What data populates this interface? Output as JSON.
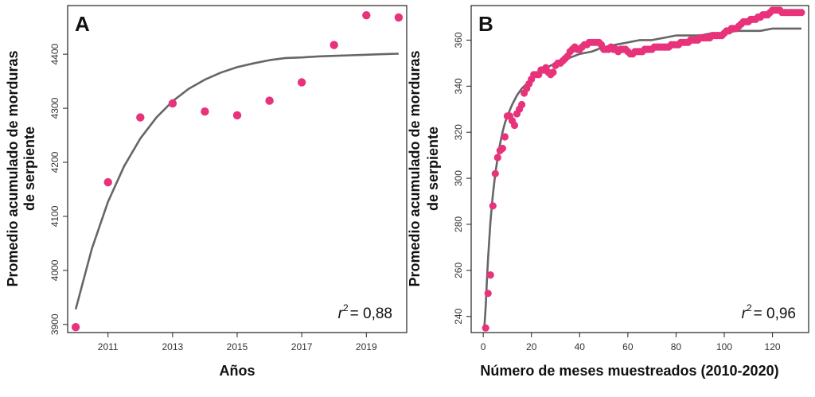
{
  "colors": {
    "points": "#e8337a",
    "fit_line": "#666666",
    "frame": "#222222"
  },
  "chart_data": [
    {
      "type": "scatter",
      "panel": "A",
      "xlabel": "Años",
      "ylabel_line1": "Promedio acumulado de morduras",
      "ylabel_line2": "de serpiente",
      "xlim": [
        2009.75,
        2020.25
      ],
      "ylim": [
        3885,
        4490
      ],
      "xticks": [
        2011,
        2013,
        2015,
        2017,
        2019
      ],
      "yticks": [
        3900,
        4000,
        4100,
        4200,
        4300,
        4400
      ],
      "annotation": {
        "r2_label": "r",
        "r2_exp": "2",
        "r2_value": "= 0,88"
      },
      "series": [
        {
          "kind": "points",
          "x": [
            2010,
            2011,
            2012,
            2013,
            2014,
            2015,
            2016,
            2017,
            2018,
            2019,
            2020
          ],
          "y": [
            3895,
            4163,
            4283,
            4309,
            4294,
            4287,
            4314,
            4348,
            4417,
            4472,
            4468
          ]
        },
        {
          "kind": "fit",
          "x": [
            2010,
            2010.5,
            2011,
            2011.5,
            2012,
            2012.5,
            2013,
            2013.5,
            2014,
            2014.5,
            2015,
            2015.5,
            2016,
            2016.5,
            2017,
            2017.5,
            2018,
            2018.5,
            2019,
            2019.5,
            2020
          ],
          "y": [
            3928,
            4040,
            4127,
            4193,
            4244,
            4283,
            4313,
            4336,
            4353,
            4366,
            4376,
            4383,
            4389,
            4393,
            4394,
            4396,
            4397,
            4398,
            4399,
            4400,
            4401
          ]
        }
      ]
    },
    {
      "type": "scatter",
      "panel": "B",
      "xlabel": "Número de meses muestreados (2010-2020)",
      "ylabel_line1": "Promedio acumulado de morduras",
      "ylabel_line2": "de serpiente",
      "xlim": [
        -5,
        135
      ],
      "ylim": [
        233,
        375
      ],
      "xticks": [
        0,
        20,
        40,
        60,
        80,
        100,
        120
      ],
      "yticks": [
        240,
        260,
        280,
        300,
        320,
        340,
        360
      ],
      "annotation": {
        "r2_label": "r",
        "r2_exp": "2",
        "r2_value": "= 0,96"
      },
      "series": [
        {
          "kind": "points",
          "x": [
            1,
            2,
            3,
            4,
            5,
            6,
            7,
            8,
            9,
            10,
            11,
            12,
            13,
            14,
            15,
            16,
            17,
            18,
            19,
            20,
            21,
            22,
            23,
            24,
            25,
            26,
            27,
            28,
            29,
            30,
            31,
            32,
            33,
            34,
            35,
            36,
            37,
            38,
            39,
            40,
            41,
            42,
            43,
            44,
            45,
            46,
            47,
            48,
            49,
            50,
            51,
            52,
            53,
            54,
            55,
            56,
            57,
            58,
            59,
            60,
            61,
            62,
            63,
            64,
            65,
            66,
            67,
            68,
            69,
            70,
            71,
            72,
            73,
            74,
            75,
            76,
            77,
            78,
            79,
            80,
            81,
            82,
            83,
            84,
            85,
            86,
            87,
            88,
            89,
            90,
            91,
            92,
            93,
            94,
            95,
            96,
            97,
            98,
            99,
            100,
            101,
            102,
            103,
            104,
            105,
            106,
            107,
            108,
            109,
            110,
            111,
            112,
            113,
            114,
            115,
            116,
            117,
            118,
            119,
            120,
            121,
            122,
            123,
            124,
            125,
            126,
            127,
            128,
            129,
            130,
            131,
            132
          ],
          "y": [
            235,
            250,
            258,
            288,
            302,
            309,
            312,
            313,
            318,
            327,
            327,
            325,
            323,
            328,
            330,
            332,
            337,
            339,
            341,
            343,
            345,
            345,
            345,
            347,
            347,
            348,
            346,
            345,
            346,
            349,
            350,
            350,
            351,
            352,
            353,
            355,
            356,
            357,
            356,
            356,
            357,
            358,
            358,
            359,
            359,
            359,
            359,
            359,
            358,
            356,
            356,
            356,
            357,
            356,
            356,
            355,
            356,
            356,
            356,
            355,
            354,
            354,
            355,
            355,
            355,
            355,
            356,
            356,
            356,
            356,
            357,
            357,
            357,
            357,
            357,
            357,
            357,
            358,
            358,
            358,
            358,
            359,
            359,
            359,
            359,
            360,
            360,
            360,
            360,
            361,
            361,
            361,
            361,
            361,
            362,
            362,
            362,
            362,
            362,
            363,
            364,
            364,
            365,
            365,
            365,
            366,
            367,
            368,
            368,
            368,
            369,
            369,
            369,
            370,
            370,
            371,
            371,
            371,
            372,
            373,
            373,
            373,
            373,
            372,
            372,
            372,
            372,
            372,
            372,
            372,
            372,
            372
          ]
        },
        {
          "kind": "fit",
          "x": [
            0.5,
            1,
            1.5,
            2,
            2.5,
            3,
            3.5,
            4,
            5,
            6,
            7,
            8,
            9,
            10,
            12,
            14,
            16,
            18,
            20,
            22,
            25,
            28,
            31,
            35,
            40,
            45,
            50,
            55,
            60,
            65,
            70,
            75,
            80,
            85,
            90,
            95,
            100,
            105,
            110,
            115,
            120,
            125,
            132
          ],
          "y": [
            236,
            244,
            255,
            265,
            273,
            281,
            287,
            293,
            302,
            309,
            315,
            320,
            324,
            327,
            332,
            336,
            339,
            341,
            343,
            345,
            347,
            349,
            350,
            352,
            354,
            355,
            357,
            358,
            359,
            360,
            360,
            361,
            362,
            362,
            362,
            363,
            363,
            364,
            364,
            364,
            365,
            365,
            365
          ]
        }
      ]
    }
  ]
}
